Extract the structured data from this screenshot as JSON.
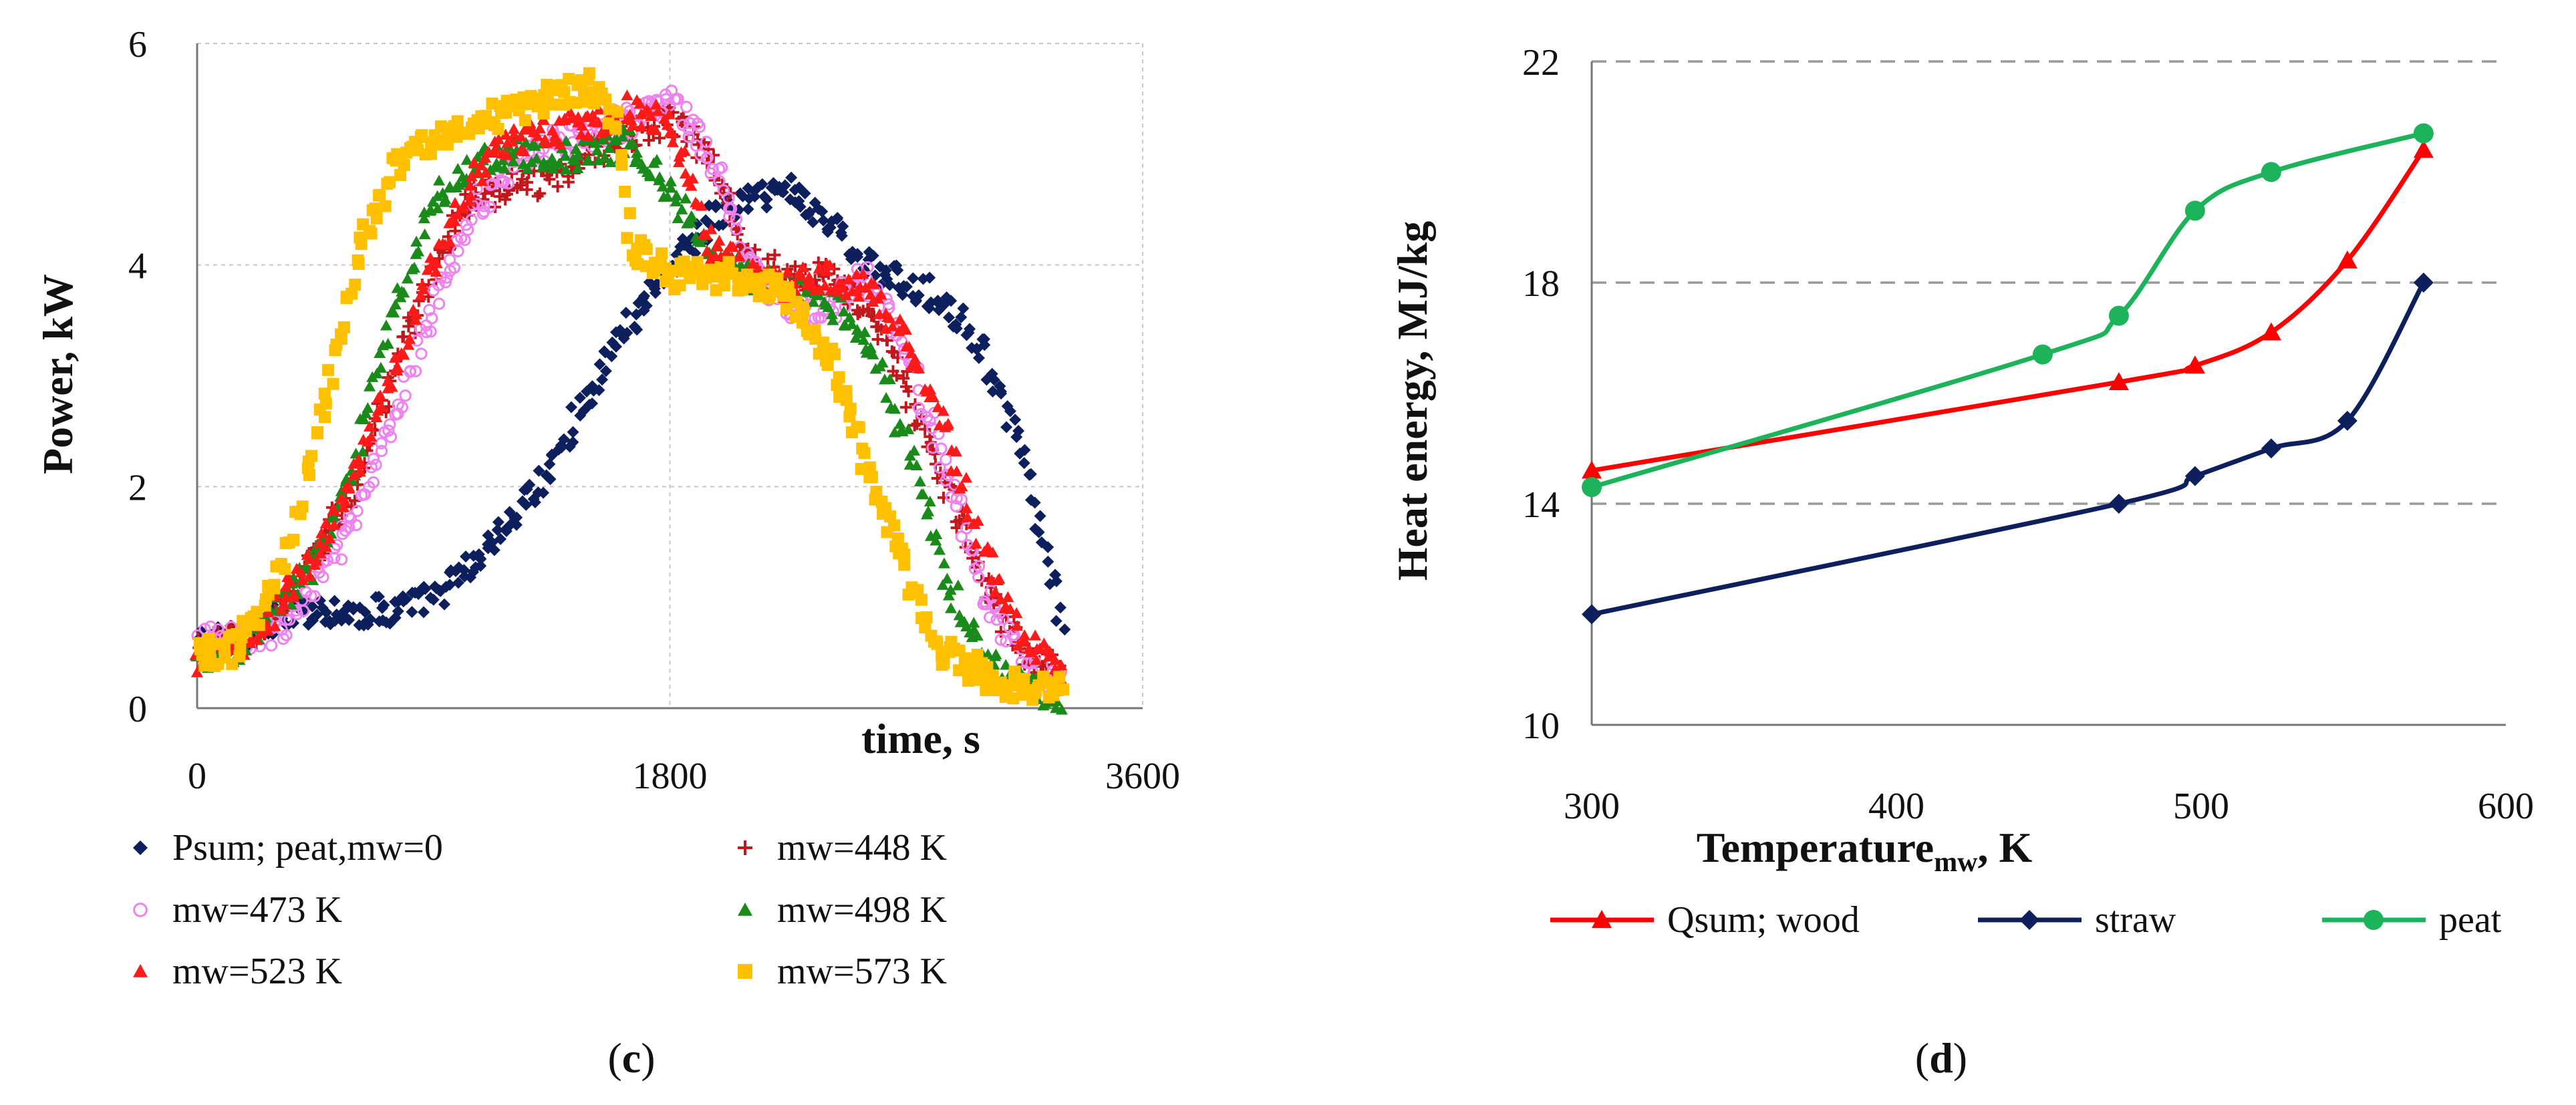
{
  "chart_data": [
    {
      "type": "scatter",
      "panel_label": "c",
      "xlabel": "time, s",
      "ylabel": "Power, kW",
      "xlim": [
        0,
        3600
      ],
      "ylim": [
        0,
        6
      ],
      "xticks": [
        "0",
        "1800",
        "3600"
      ],
      "yticks": [
        "0",
        "2",
        "4",
        "6"
      ],
      "grid": "horizontal",
      "legend_position": "bottom",
      "series": [
        {
          "name": "Psum; peat,mw=0",
          "marker": "diamond",
          "color": "#0d1f5c",
          "x": [
            0,
            120,
            300,
            450,
            600,
            750,
            900,
            1050,
            1200,
            1350,
            1500,
            1650,
            1800,
            1950,
            2100,
            2250,
            2400,
            2550,
            2700,
            2850,
            3000,
            3150,
            3270,
            3300
          ],
          "y": [
            0.6,
            0.6,
            0.8,
            0.9,
            0.85,
            0.9,
            1.0,
            1.3,
            1.7,
            2.2,
            2.9,
            3.5,
            4.0,
            4.4,
            4.6,
            4.7,
            4.4,
            4.0,
            3.8,
            3.7,
            3.2,
            2.2,
            1.0,
            0.6
          ]
        },
        {
          "name": "mw=448 K",
          "marker": "plus",
          "color": "#c0181c",
          "x": [
            0,
            120,
            300,
            450,
            600,
            750,
            900,
            1050,
            1200,
            1350,
            1500,
            1650,
            1800,
            1950,
            2100,
            2250,
            2400,
            2550,
            2700,
            2850,
            3000,
            3150,
            3300
          ],
          "y": [
            0.5,
            0.6,
            0.8,
            1.4,
            2.0,
            3.0,
            4.0,
            4.6,
            4.7,
            4.8,
            5.0,
            5.2,
            5.3,
            5.0,
            4.1,
            3.9,
            3.9,
            3.6,
            2.9,
            2.0,
            1.1,
            0.5,
            0.3
          ]
        },
        {
          "name": "mw=473 K",
          "marker": "circle-open",
          "color": "#ee82ee",
          "x": [
            0,
            120,
            300,
            450,
            600,
            750,
            900,
            1050,
            1200,
            1350,
            1500,
            1650,
            1800,
            1950,
            2100,
            2250,
            2400,
            2550,
            2700,
            2850,
            3000,
            3150,
            3300
          ],
          "y": [
            0.6,
            0.6,
            0.7,
            1.1,
            1.7,
            2.6,
            3.6,
            4.5,
            4.9,
            5.1,
            5.2,
            5.3,
            5.5,
            5.0,
            4.0,
            3.6,
            3.6,
            3.9,
            3.2,
            2.2,
            1.0,
            0.4,
            0.2
          ]
        },
        {
          "name": "mw=498 K",
          "marker": "triangle",
          "color": "#1a8a1a",
          "x": [
            0,
            120,
            300,
            450,
            600,
            750,
            900,
            1050,
            1200,
            1350,
            1500,
            1650,
            1800,
            1950,
            2100,
            2250,
            2400,
            2550,
            2700,
            2850,
            3000,
            3150,
            3300
          ],
          "y": [
            0.4,
            0.5,
            0.9,
            1.3,
            2.2,
            3.6,
            4.6,
            4.9,
            5.0,
            5.0,
            5.0,
            5.1,
            4.7,
            4.1,
            3.9,
            3.8,
            3.7,
            3.3,
            2.4,
            1.2,
            0.4,
            0.2,
            0.1
          ]
        },
        {
          "name": "mw=523 K",
          "marker": "triangle",
          "color": "#ff1a1a",
          "x": [
            0,
            120,
            300,
            450,
            600,
            750,
            900,
            1050,
            1200,
            1350,
            1500,
            1650,
            1800,
            1950,
            2100,
            2250,
            2400,
            2550,
            2700,
            2850,
            3000,
            3150,
            3300
          ],
          "y": [
            0.4,
            0.5,
            0.9,
            1.4,
            2.1,
            3.0,
            4.0,
            4.8,
            5.1,
            5.2,
            5.3,
            5.4,
            5.3,
            4.2,
            3.9,
            3.8,
            3.9,
            3.8,
            3.3,
            2.5,
            1.4,
            0.6,
            0.3
          ]
        },
        {
          "name": "mw=573 K",
          "marker": "square",
          "color": "#ffc000",
          "x": [
            0,
            120,
            240,
            360,
            480,
            600,
            750,
            900,
            1050,
            1200,
            1350,
            1500,
            1600,
            1650,
            1800,
            1950,
            2100,
            2250,
            2400,
            2550,
            2700,
            2850,
            3000,
            3150,
            3300
          ],
          "y": [
            0.5,
            0.5,
            0.8,
            1.5,
            2.7,
            4.0,
            4.9,
            5.1,
            5.3,
            5.4,
            5.5,
            5.6,
            5.3,
            4.2,
            3.9,
            3.9,
            3.9,
            3.7,
            3.2,
            2.2,
            1.2,
            0.5,
            0.3,
            0.2,
            0.2
          ]
        }
      ]
    },
    {
      "type": "line",
      "panel_label": "d",
      "xlabel": "Temperature",
      "xlabel_subscript": "mw",
      "xlabel_suffix": ", K",
      "ylabel": "Heat energy, MJ/kg",
      "xlim": [
        300,
        600
      ],
      "ylim": [
        10,
        22
      ],
      "xticks": [
        "300",
        "400",
        "500",
        "600"
      ],
      "yticks": [
        "10",
        "14",
        "18",
        "22"
      ],
      "grid": "horizontal",
      "legend_position": "bottom",
      "series": [
        {
          "name": "Qsum; wood",
          "marker": "triangle",
          "color": "#ff0000",
          "x": [
            300,
            473,
            498,
            523,
            548,
            573
          ],
          "y": [
            14.6,
            16.2,
            16.5,
            17.1,
            18.4,
            20.4
          ]
        },
        {
          "name": "straw",
          "marker": "diamond",
          "color": "#0d1f5c",
          "x": [
            300,
            473,
            498,
            523,
            548,
            573
          ],
          "y": [
            12.0,
            14.0,
            14.5,
            15.0,
            15.5,
            18.0
          ]
        },
        {
          "name": "peat",
          "marker": "circle",
          "color": "#1db35a",
          "x": [
            300,
            448,
            473,
            498,
            523,
            573
          ],
          "y": [
            14.3,
            16.7,
            17.4,
            19.3,
            20.0,
            20.7
          ]
        }
      ]
    }
  ]
}
